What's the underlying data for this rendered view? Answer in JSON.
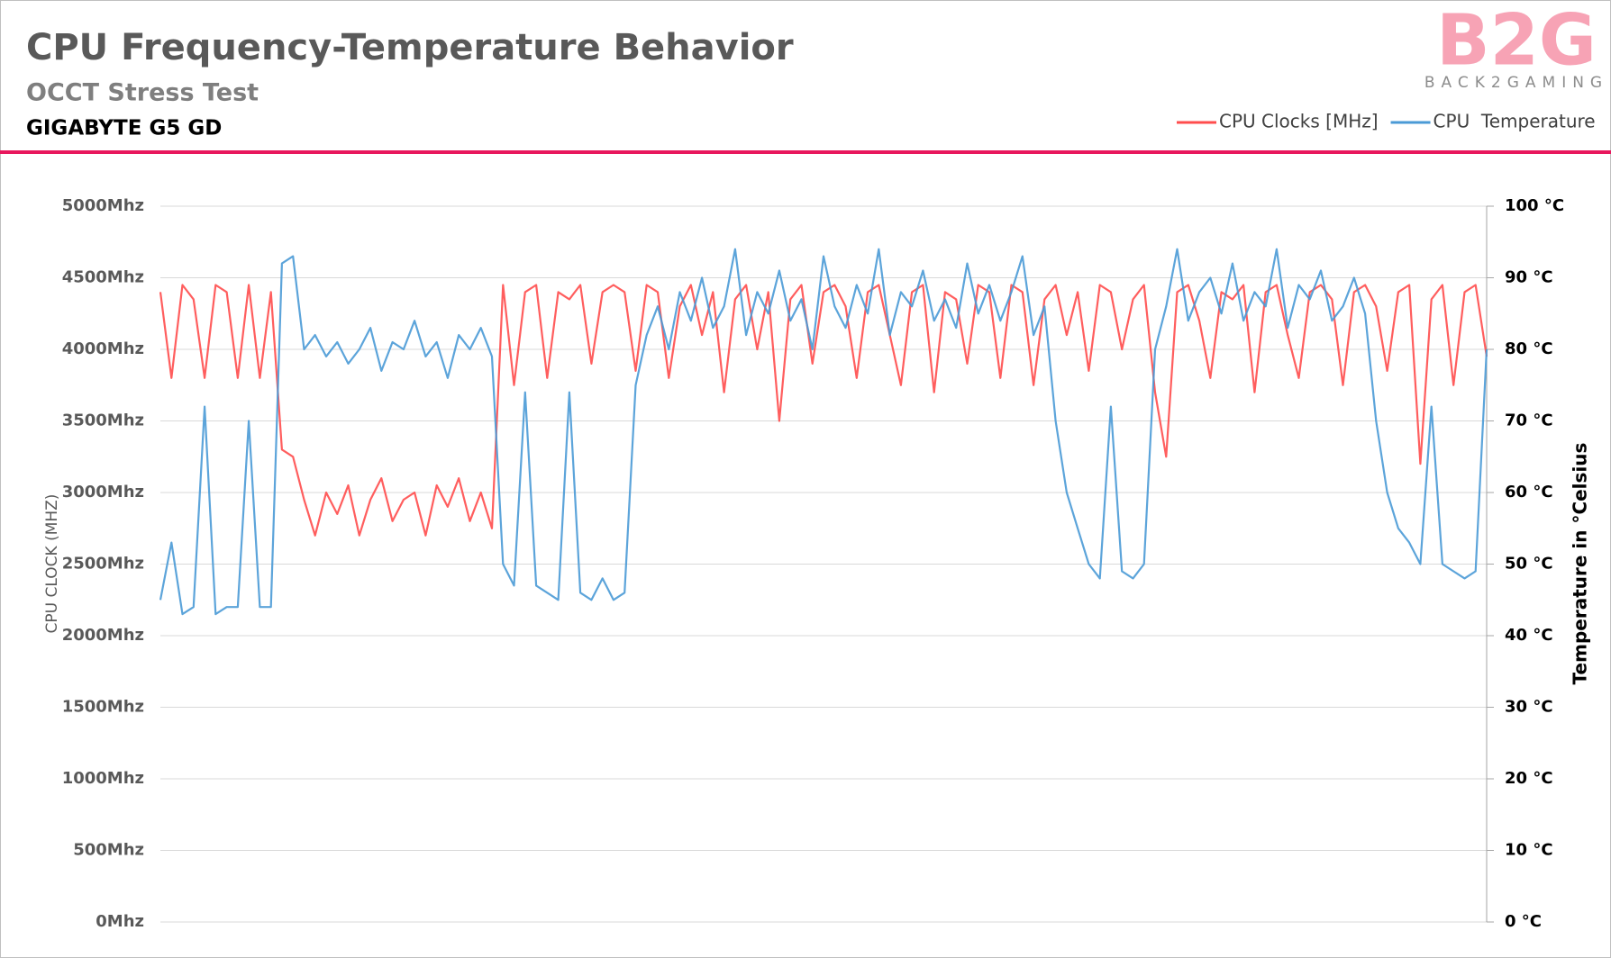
{
  "logo": {
    "text": "B2G",
    "tagline": "BACK2GAMING"
  },
  "chart_data": {
    "type": "line",
    "title": "CPU Frequency-Temperature Behavior",
    "subtitle": "OCCT Stress Test",
    "device": "GIGABYTE G5 GD",
    "y_label": "CPU CLOCK (MHZ)",
    "y2_label": "Temperature in °Celsius",
    "ylim": [
      0,
      5000
    ],
    "yticks": [
      {
        "value": 0,
        "label": "0Mhz"
      },
      {
        "value": 500,
        "label": "500Mhz"
      },
      {
        "value": 1000,
        "label": "1000Mhz"
      },
      {
        "value": 1500,
        "label": "1500Mhz"
      },
      {
        "value": 2000,
        "label": "2000Mhz"
      },
      {
        "value": 2500,
        "label": "2500Mhz"
      },
      {
        "value": 3000,
        "label": "3000Mhz"
      },
      {
        "value": 3500,
        "label": "3500Mhz"
      },
      {
        "value": 4000,
        "label": "4000Mhz"
      },
      {
        "value": 4500,
        "label": "4500Mhz"
      },
      {
        "value": 5000,
        "label": "5000Mhz"
      }
    ],
    "y2lim": [
      0,
      100
    ],
    "y2ticks": [
      {
        "value": 0,
        "label": "0 °C"
      },
      {
        "value": 10,
        "label": "10 °C"
      },
      {
        "value": 20,
        "label": "20 °C"
      },
      {
        "value": 30,
        "label": "30 °C"
      },
      {
        "value": 40,
        "label": "40 °C"
      },
      {
        "value": 50,
        "label": "50 °C"
      },
      {
        "value": 60,
        "label": "60 °C"
      },
      {
        "value": 70,
        "label": "70 °C"
      },
      {
        "value": 80,
        "label": "80 °C"
      },
      {
        "value": 90,
        "label": "90 °C"
      },
      {
        "value": 100,
        "label": "100 °C"
      }
    ],
    "grid": true,
    "legend": "top-right",
    "series": [
      {
        "name": "CPU Clocks [MHz]",
        "color": "#ff4d4d",
        "values": [
          4400,
          3800,
          4450,
          4350,
          3800,
          4450,
          4400,
          3800,
          4450,
          3800,
          4400,
          3300,
          3250,
          2950,
          2700,
          3000,
          2850,
          3050,
          2700,
          2950,
          3100,
          2800,
          2950,
          3000,
          2700,
          3050,
          2900,
          3100,
          2800,
          3000,
          2750,
          4450,
          3750,
          4400,
          4450,
          3800,
          4400,
          4350,
          4450,
          3900,
          4400,
          4450,
          4400,
          3850,
          4450,
          4400,
          3800,
          4300,
          4450,
          4100,
          4400,
          3700,
          4350,
          4450,
          4000,
          4400,
          3500,
          4350,
          4450,
          3900,
          4400,
          4450,
          4300,
          3800,
          4400,
          4450,
          4100,
          3750,
          4400,
          4450,
          3700,
          4400,
          4350,
          3900,
          4450,
          4400,
          3800,
          4450,
          4400,
          3750,
          4350,
          4450,
          4100,
          4400,
          3850,
          4450,
          4400,
          4000,
          4350,
          4450,
          3700,
          3250,
          4400,
          4450,
          4200,
          3800,
          4400,
          4350,
          4450,
          3700,
          4400,
          4450,
          4100,
          3800,
          4400,
          4450,
          4350,
          3750,
          4400,
          4450,
          4300,
          3850,
          4400,
          4450,
          3200,
          4350,
          4450,
          3750,
          4400,
          4450,
          3950
        ]
      },
      {
        "name": "CPU  Temperature",
        "color": "#4a9ad6",
        "axis": "y2",
        "values": [
          45,
          53,
          43,
          44,
          72,
          43,
          44,
          44,
          70,
          44,
          44,
          92,
          93,
          80,
          82,
          79,
          81,
          78,
          80,
          83,
          77,
          81,
          80,
          84,
          79,
          81,
          76,
          82,
          80,
          83,
          79,
          50,
          47,
          74,
          47,
          46,
          45,
          74,
          46,
          45,
          48,
          45,
          46,
          75,
          82,
          86,
          80,
          88,
          84,
          90,
          83,
          86,
          94,
          82,
          88,
          85,
          91,
          84,
          87,
          80,
          93,
          86,
          83,
          89,
          85,
          94,
          82,
          88,
          86,
          91,
          84,
          87,
          83,
          92,
          85,
          89,
          84,
          88,
          93,
          82,
          86,
          70,
          60,
          55,
          50,
          48,
          72,
          49,
          48,
          50,
          80,
          86,
          94,
          84,
          88,
          90,
          85,
          92,
          84,
          88,
          86,
          94,
          83,
          89,
          87,
          91,
          84,
          86,
          90,
          85,
          70,
          60,
          55,
          53,
          50,
          72,
          50,
          49,
          48,
          49,
          80
        ]
      }
    ]
  }
}
